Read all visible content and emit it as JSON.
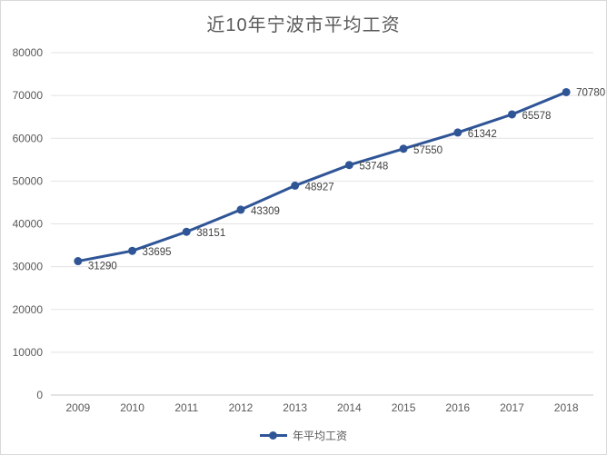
{
  "chart_data": {
    "type": "line",
    "title": "近10年宁波市平均工资",
    "categories": [
      "2009",
      "2010",
      "2011",
      "2012",
      "2013",
      "2014",
      "2015",
      "2016",
      "2017",
      "2018"
    ],
    "series": [
      {
        "name": "年平均工资",
        "values": [
          31290,
          33695,
          38151,
          43309,
          48927,
          53748,
          57550,
          61342,
          65578,
          70780
        ]
      }
    ],
    "xlabel": "",
    "ylabel": "",
    "ylim": [
      0,
      80000
    ],
    "ytick_step": 10000,
    "ytick_labels": [
      "0",
      "10000",
      "20000",
      "30000",
      "40000",
      "50000",
      "60000",
      "70000",
      "80000"
    ],
    "grid": "horizontal",
    "data_labels": true,
    "marker": "circle",
    "legend_position": "bottom-center",
    "colors": {
      "line": "#2f5597",
      "marker": "#2f5597",
      "gridline": "#e3e3e3",
      "axis_line": "#c9c9c9",
      "tick_label": "#595959",
      "data_label": "#3f3f3f",
      "title": "#595959",
      "frame_border": "#d9d9d9",
      "background": "#ffffff"
    }
  }
}
